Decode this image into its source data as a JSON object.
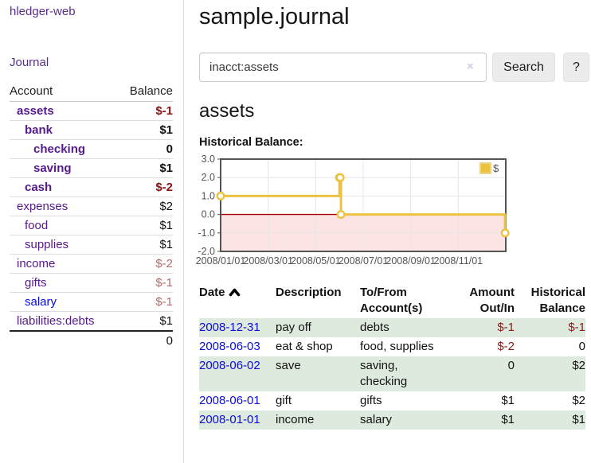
{
  "app": {
    "brand": "hledger-web",
    "nav_journal": "Journal"
  },
  "sidebar": {
    "col_account": "Account",
    "col_balance": "Balance",
    "accounts": [
      {
        "name": "assets",
        "indent": 1,
        "bold": true,
        "balance": "$-1",
        "neg": "strong"
      },
      {
        "name": "bank",
        "indent": 2,
        "bold": true,
        "balance": "$1",
        "neg": "none"
      },
      {
        "name": "checking",
        "indent": 3,
        "bold": true,
        "balance": "0",
        "neg": "none"
      },
      {
        "name": "saving",
        "indent": 3,
        "bold": true,
        "balance": "$1",
        "neg": "none"
      },
      {
        "name": "cash",
        "indent": 2,
        "bold": true,
        "balance": "$-2",
        "neg": "strong"
      },
      {
        "name": "expenses",
        "indent": 1,
        "bold": false,
        "balance": "$2",
        "neg": "none"
      },
      {
        "name": "food",
        "indent": 2,
        "bold": false,
        "balance": "$1",
        "neg": "none"
      },
      {
        "name": "supplies",
        "indent": 2,
        "bold": false,
        "balance": "$1",
        "neg": "none"
      },
      {
        "name": "income",
        "indent": 1,
        "bold": false,
        "balance": "$-2",
        "neg": "soft"
      },
      {
        "name": "gifts",
        "indent": 2,
        "bold": false,
        "balance": "$-1",
        "neg": "soft"
      },
      {
        "name": "salary",
        "indent": 2,
        "bold": false,
        "balance": "$-1",
        "neg": "soft",
        "unvisited": true
      },
      {
        "name": "liabilities:debts",
        "indent": 1,
        "bold": false,
        "balance": "$1",
        "neg": "none"
      }
    ],
    "total": "0"
  },
  "header": {
    "title": "sample.journal"
  },
  "search": {
    "value": "inacct:assets",
    "clear_icon": "×",
    "button_label": "Search",
    "help_label": "?"
  },
  "account_page": {
    "heading": "assets",
    "chart_label": "Historical Balance:"
  },
  "chart_data": {
    "type": "line",
    "step": true,
    "title": "Historical Balance",
    "series": [
      {
        "name": "$",
        "color": "#edc240",
        "points": [
          [
            "2008-01-01",
            1
          ],
          [
            "2008-06-01",
            2
          ],
          [
            "2008-06-02",
            2
          ],
          [
            "2008-06-03",
            0
          ],
          [
            "2008-12-31",
            -1
          ]
        ]
      }
    ],
    "xlim": [
      "2008-01-01",
      "2008-12-31"
    ],
    "ylim": [
      -2,
      3
    ],
    "xticks": [
      "2008/01/01",
      "2008/03/01",
      "2008/05/01",
      "2008/07/01",
      "2008/09/01",
      "2008/11/01"
    ],
    "yticks": [
      "3.0",
      "2.0",
      "1.0",
      "0.0",
      "-1.0",
      "-2.0"
    ],
    "ytick_values": [
      3,
      2,
      1,
      0,
      -1,
      -2
    ],
    "grid": true,
    "legend": "$",
    "legend_position": "top-right",
    "colors": {
      "line": "#edc240",
      "marker_fill": "#ffffff",
      "negative_region_fill": "#fce4e4",
      "zero_line": "#a80000",
      "gridline": "#e6e6e6",
      "plot_border": "#545454",
      "axis_text": "#545454",
      "legend_swatch_border": "#e9d globalization"
    }
  },
  "register": {
    "columns": {
      "date": "Date",
      "description": "Description",
      "accounts": "To/From\nAccount(s)",
      "amount": "Amount\nOut/In",
      "balance": "Historical\nBalance"
    },
    "sort_icon": "caret-up",
    "rows": [
      {
        "date": "2008-12-31",
        "description": "pay off",
        "accounts": [
          "debts"
        ],
        "amount": "$-1",
        "amount_neg": true,
        "balance": "$-1",
        "balance_neg": true,
        "shaded": true
      },
      {
        "date": "2008-06-03",
        "description": "eat & shop",
        "accounts": [
          "food, supplies"
        ],
        "amount": "$-2",
        "amount_neg": true,
        "balance": "0",
        "balance_neg": false,
        "shaded": false
      },
      {
        "date": "2008-06-02",
        "description": "save",
        "accounts": [
          "saving,",
          "checking"
        ],
        "amount": "0",
        "amount_neg": false,
        "balance": "$2",
        "balance_neg": false,
        "shaded": true
      },
      {
        "date": "2008-06-01",
        "description": "gift",
        "accounts": [
          "gifts"
        ],
        "amount": "$1",
        "amount_neg": false,
        "balance": "$2",
        "balance_neg": false,
        "shaded": false
      },
      {
        "date": "2008-01-01",
        "description": "income",
        "accounts": [
          "salary"
        ],
        "amount": "$1",
        "amount_neg": false,
        "balance": "$1",
        "balance_neg": false,
        "shaded": true
      }
    ]
  }
}
